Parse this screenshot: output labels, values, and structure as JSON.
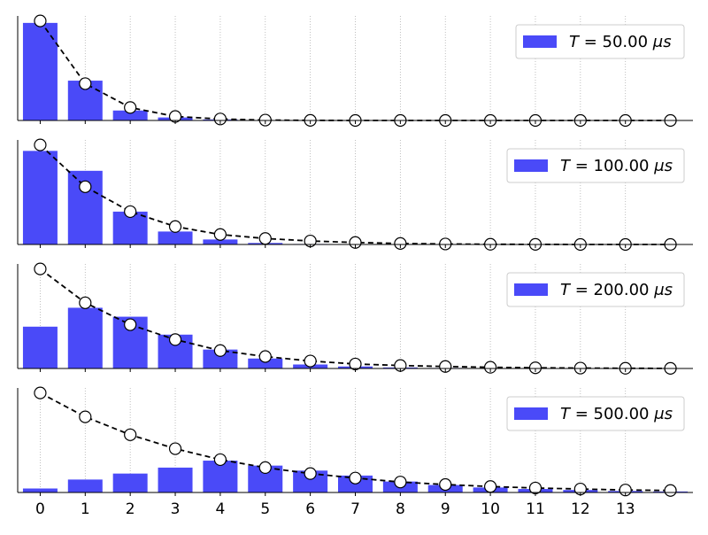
{
  "colors": {
    "bar": "#4a4af8",
    "line": "#000000",
    "marker_fill": "#ffffff",
    "marker_edge": "#000000",
    "grid": "#b0b0b0",
    "axis": "#000000",
    "legend_edge": "#cccccc"
  },
  "chart_data": [
    {
      "type": "bar",
      "legend": {
        "label_prefix": "T = ",
        "value": "50.00",
        "unit": "μs",
        "placement": "top-right"
      },
      "x": [
        0,
        1,
        2,
        3,
        4,
        5,
        6,
        7,
        8,
        9,
        10,
        11,
        12,
        13,
        14
      ],
      "bars": [
        0.98,
        0.4,
        0.1,
        0.03,
        0.01,
        0,
        0,
        0,
        0,
        0,
        0,
        0,
        0,
        0,
        0
      ],
      "line": [
        1.0,
        0.37,
        0.13,
        0.04,
        0.015,
        0.004,
        0.001,
        0,
        0,
        0,
        0,
        0,
        0,
        0,
        0
      ],
      "xlim": [
        -0.5,
        14.5
      ],
      "ylim": [
        0,
        1.05
      ],
      "grid": "x-dotted"
    },
    {
      "type": "bar",
      "legend": {
        "label_prefix": "T = ",
        "value": "100.00",
        "unit": "μs",
        "placement": "top-right"
      },
      "x": [
        0,
        1,
        2,
        3,
        4,
        5,
        6,
        7,
        8,
        9,
        10,
        11,
        12,
        13,
        14
      ],
      "bars": [
        0.94,
        0.74,
        0.33,
        0.13,
        0.05,
        0.015,
        0.005,
        0,
        0,
        0,
        0,
        0,
        0,
        0,
        0
      ],
      "line": [
        1.0,
        0.58,
        0.33,
        0.18,
        0.1,
        0.06,
        0.035,
        0.02,
        0.01,
        0.005,
        0.002,
        0.001,
        0,
        0,
        0
      ],
      "xlim": [
        -0.5,
        14.5
      ],
      "ylim": [
        0,
        1.05
      ],
      "grid": "x-dotted"
    },
    {
      "type": "bar",
      "legend": {
        "label_prefix": "T = ",
        "value": "200.00",
        "unit": "μs",
        "placement": "top-right"
      },
      "x": [
        0,
        1,
        2,
        3,
        4,
        5,
        6,
        7,
        8,
        9,
        10,
        11,
        12,
        13,
        14
      ],
      "bars": [
        0.42,
        0.61,
        0.52,
        0.34,
        0.19,
        0.1,
        0.04,
        0.02,
        0.01,
        0.005,
        0,
        0,
        0,
        0,
        0
      ],
      "line": [
        1.0,
        0.66,
        0.44,
        0.29,
        0.18,
        0.12,
        0.075,
        0.045,
        0.03,
        0.02,
        0.012,
        0.007,
        0.004,
        0.002,
        0.001
      ],
      "xlim": [
        -0.5,
        14.5
      ],
      "ylim": [
        0,
        1.05
      ],
      "grid": "x-dotted"
    },
    {
      "type": "bar",
      "legend": {
        "label_prefix": "T = ",
        "value": "500.00",
        "unit": "μs",
        "placement": "top-right"
      },
      "x": [
        0,
        1,
        2,
        3,
        4,
        5,
        6,
        7,
        8,
        9,
        10,
        11,
        12,
        13,
        14
      ],
      "bars": [
        0.04,
        0.13,
        0.19,
        0.25,
        0.32,
        0.27,
        0.22,
        0.17,
        0.11,
        0.075,
        0.05,
        0.035,
        0.025,
        0.015,
        0.01
      ],
      "line": [
        1.0,
        0.76,
        0.58,
        0.44,
        0.33,
        0.25,
        0.19,
        0.145,
        0.105,
        0.08,
        0.06,
        0.045,
        0.035,
        0.025,
        0.02
      ],
      "xlim": [
        -0.5,
        14.5
      ],
      "ylim": [
        0,
        1.05
      ],
      "grid": "x-dotted"
    }
  ],
  "x_tick_labels": [
    "0",
    "1",
    "2",
    "3",
    "4",
    "5",
    "6",
    "7",
    "8",
    "9",
    "10",
    "11",
    "12",
    "13"
  ]
}
